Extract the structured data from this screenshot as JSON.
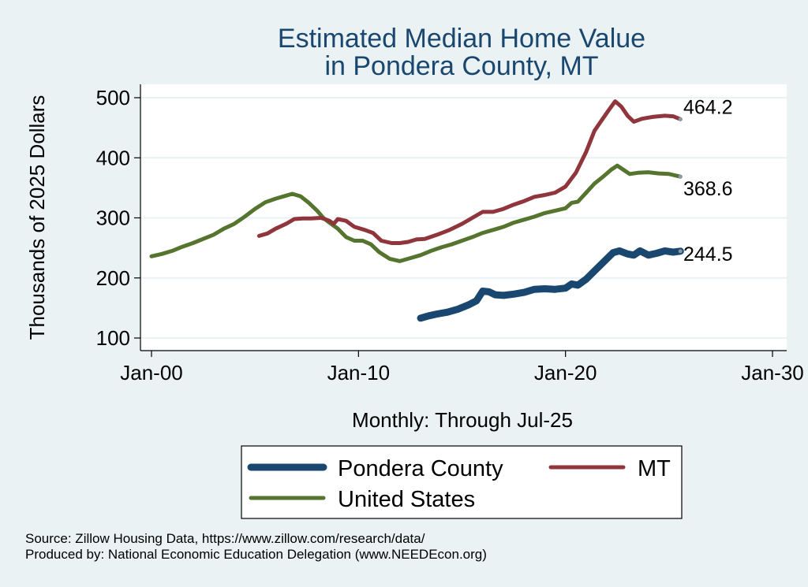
{
  "chart_data": {
    "type": "line",
    "title": [
      "Estimated Median Home Value",
      "in Pondera County, MT"
    ],
    "ylabel": "Thousands of 2025 Dollars",
    "xlabel": "Monthly: Through Jul-25",
    "ylim": [
      100,
      500
    ],
    "xlim": [
      2000,
      2030
    ],
    "yticks": [
      100,
      200,
      300,
      400,
      500
    ],
    "xticks": [
      {
        "value": 2000,
        "label": "Jan-00"
      },
      {
        "value": 2010,
        "label": "Jan-10"
      },
      {
        "value": 2020,
        "label": "Jan-20"
      },
      {
        "value": 2030,
        "label": "Jan-30"
      }
    ],
    "grid": true,
    "legend_position": "bottom",
    "series": [
      {
        "name": "Pondera County",
        "color": "#1a476f",
        "end_label": "244.5",
        "points": [
          [
            2013.0,
            133
          ],
          [
            2013.4,
            137
          ],
          [
            2013.8,
            140
          ],
          [
            2014.3,
            143
          ],
          [
            2014.8,
            148
          ],
          [
            2015.3,
            155
          ],
          [
            2015.7,
            162
          ],
          [
            2016.0,
            178
          ],
          [
            2016.3,
            177
          ],
          [
            2016.6,
            172
          ],
          [
            2017.0,
            171
          ],
          [
            2017.5,
            173
          ],
          [
            2018.0,
            176
          ],
          [
            2018.5,
            181
          ],
          [
            2019.0,
            182
          ],
          [
            2019.5,
            181
          ],
          [
            2020.0,
            183
          ],
          [
            2020.3,
            190
          ],
          [
            2020.6,
            188
          ],
          [
            2021.0,
            198
          ],
          [
            2021.5,
            215
          ],
          [
            2022.0,
            232
          ],
          [
            2022.3,
            242
          ],
          [
            2022.6,
            245
          ],
          [
            2023.0,
            240
          ],
          [
            2023.3,
            238
          ],
          [
            2023.6,
            245
          ],
          [
            2024.0,
            238
          ],
          [
            2024.4,
            241
          ],
          [
            2024.8,
            245
          ],
          [
            2025.2,
            243
          ],
          [
            2025.55,
            244.5
          ]
        ]
      },
      {
        "name": "MT",
        "color": "#90353b",
        "end_label": "464.2",
        "points": [
          [
            2005.2,
            270
          ],
          [
            2005.6,
            274
          ],
          [
            2006.0,
            282
          ],
          [
            2006.5,
            290
          ],
          [
            2006.9,
            298
          ],
          [
            2007.3,
            299
          ],
          [
            2007.7,
            299
          ],
          [
            2008.2,
            300
          ],
          [
            2008.6,
            295
          ],
          [
            2008.8,
            290
          ],
          [
            2009.0,
            298
          ],
          [
            2009.4,
            295
          ],
          [
            2009.8,
            285
          ],
          [
            2010.3,
            280
          ],
          [
            2010.7,
            275
          ],
          [
            2011.1,
            262
          ],
          [
            2011.6,
            258
          ],
          [
            2012.0,
            258
          ],
          [
            2012.4,
            260
          ],
          [
            2012.8,
            264
          ],
          [
            2013.2,
            265
          ],
          [
            2013.8,
            272
          ],
          [
            2014.4,
            280
          ],
          [
            2015.0,
            290
          ],
          [
            2015.5,
            300
          ],
          [
            2016.0,
            310
          ],
          [
            2016.5,
            310
          ],
          [
            2017.0,
            315
          ],
          [
            2017.5,
            322
          ],
          [
            2018.0,
            328
          ],
          [
            2018.5,
            335
          ],
          [
            2019.0,
            338
          ],
          [
            2019.5,
            342
          ],
          [
            2020.0,
            352
          ],
          [
            2020.5,
            375
          ],
          [
            2021.0,
            410
          ],
          [
            2021.4,
            445
          ],
          [
            2021.8,
            465
          ],
          [
            2022.1,
            480
          ],
          [
            2022.4,
            494
          ],
          [
            2022.7,
            485
          ],
          [
            2023.0,
            470
          ],
          [
            2023.3,
            460
          ],
          [
            2023.7,
            465
          ],
          [
            2024.2,
            468
          ],
          [
            2024.8,
            470
          ],
          [
            2025.2,
            469
          ],
          [
            2025.55,
            464.2
          ]
        ]
      },
      {
        "name": "United States",
        "color": "#55752f",
        "end_label": "368.6",
        "points": [
          [
            2000.0,
            236
          ],
          [
            2000.5,
            240
          ],
          [
            2001.0,
            245
          ],
          [
            2001.5,
            252
          ],
          [
            2002.0,
            258
          ],
          [
            2002.5,
            265
          ],
          [
            2003.0,
            272
          ],
          [
            2003.5,
            282
          ],
          [
            2004.0,
            290
          ],
          [
            2004.5,
            302
          ],
          [
            2005.0,
            315
          ],
          [
            2005.5,
            326
          ],
          [
            2006.0,
            332
          ],
          [
            2006.5,
            337
          ],
          [
            2006.8,
            340
          ],
          [
            2007.2,
            336
          ],
          [
            2007.6,
            325
          ],
          [
            2008.0,
            312
          ],
          [
            2008.3,
            300
          ],
          [
            2008.6,
            292
          ],
          [
            2009.0,
            282
          ],
          [
            2009.4,
            268
          ],
          [
            2009.8,
            262
          ],
          [
            2010.2,
            262
          ],
          [
            2010.6,
            256
          ],
          [
            2011.0,
            243
          ],
          [
            2011.5,
            232
          ],
          [
            2012.0,
            228
          ],
          [
            2012.5,
            233
          ],
          [
            2013.0,
            238
          ],
          [
            2013.5,
            245
          ],
          [
            2014.0,
            251
          ],
          [
            2014.5,
            256
          ],
          [
            2015.0,
            262
          ],
          [
            2015.5,
            268
          ],
          [
            2016.0,
            275
          ],
          [
            2016.5,
            280
          ],
          [
            2017.0,
            285
          ],
          [
            2017.5,
            292
          ],
          [
            2018.0,
            297
          ],
          [
            2018.5,
            302
          ],
          [
            2019.0,
            308
          ],
          [
            2019.5,
            312
          ],
          [
            2020.0,
            316
          ],
          [
            2020.3,
            325
          ],
          [
            2020.6,
            327
          ],
          [
            2021.0,
            342
          ],
          [
            2021.4,
            357
          ],
          [
            2021.8,
            368
          ],
          [
            2022.2,
            380
          ],
          [
            2022.5,
            387
          ],
          [
            2022.8,
            380
          ],
          [
            2023.1,
            373
          ],
          [
            2023.5,
            375
          ],
          [
            2024.0,
            376
          ],
          [
            2024.5,
            374
          ],
          [
            2025.0,
            373
          ],
          [
            2025.55,
            368.6
          ]
        ]
      }
    ]
  },
  "source": {
    "line1": "Source: Zillow Housing Data, https://www.zillow.com/research/data/",
    "line2": "Produced by: National Economic Education Delegation (www.NEEDEcon.org)"
  }
}
